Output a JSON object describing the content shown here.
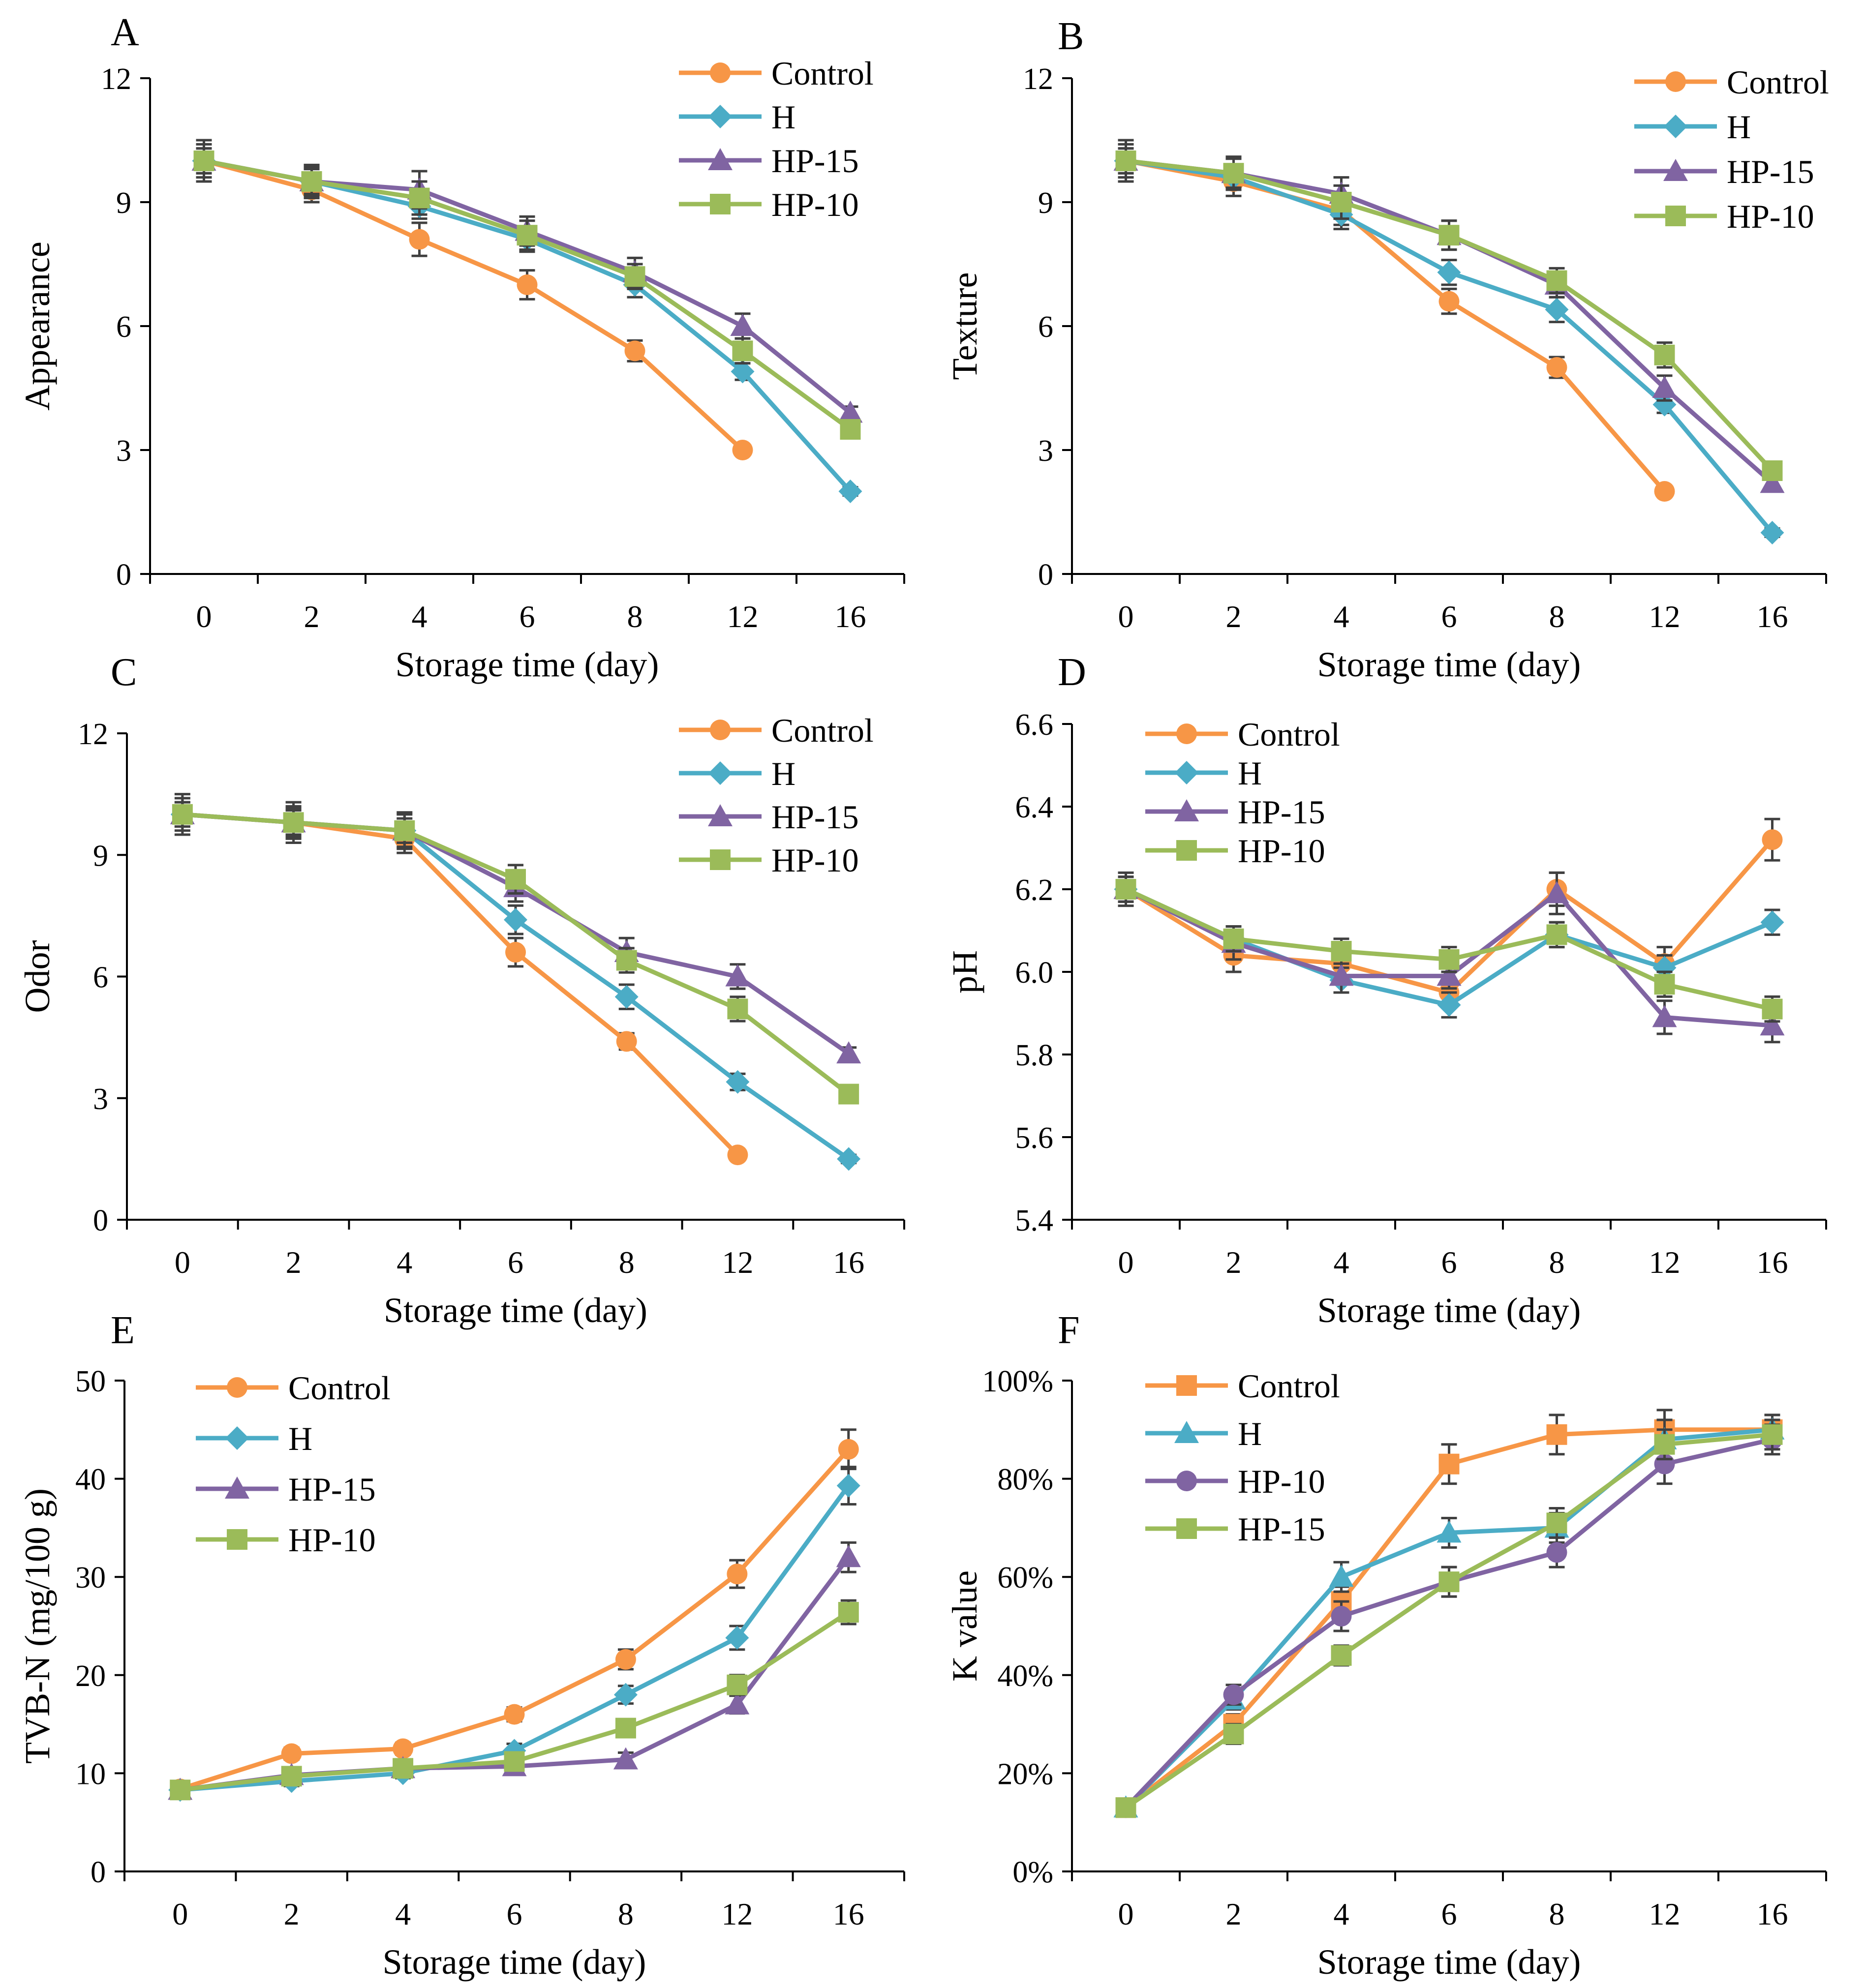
{
  "colors": {
    "control": "#F79646",
    "h": "#4BACC6",
    "hp15": "#8064A2",
    "hp10": "#9BBB59",
    "error_bar": "#404040"
  },
  "chart_data": [
    {
      "type": "line",
      "panel": "A",
      "xlabel": "Storage time (day)",
      "ylabel": "Appearance",
      "categories": [
        "0",
        "2",
        "4",
        "6",
        "8",
        "12",
        "16"
      ],
      "ylim": [
        0,
        12
      ],
      "yticks": [
        "0",
        "3",
        "6",
        "9",
        "12"
      ],
      "legend_position": "top-right",
      "series": [
        {
          "name": "Control",
          "marker": "circle",
          "color_key": "control",
          "values": [
            10.0,
            9.3,
            8.1,
            7.0,
            5.4,
            3.0,
            null
          ],
          "errors": [
            0.3,
            0.3,
            0.4,
            0.35,
            0.25,
            0.1,
            0
          ]
        },
        {
          "name": "H",
          "marker": "diamond",
          "color_key": "h",
          "values": [
            10.0,
            9.5,
            8.9,
            8.1,
            7.0,
            4.9,
            2.0
          ],
          "errors": [
            0.3,
            0.3,
            0.3,
            0.3,
            0.3,
            0.2,
            0.1
          ]
        },
        {
          "name": "HP-15",
          "marker": "triangle",
          "color_key": "hp15",
          "values": [
            10.0,
            9.5,
            9.3,
            8.3,
            7.3,
            6.0,
            3.9
          ],
          "errors": [
            0.5,
            0.4,
            0.45,
            0.35,
            0.35,
            0.3,
            0.15
          ]
        },
        {
          "name": "HP-10",
          "marker": "square",
          "color_key": "hp10",
          "values": [
            10.0,
            9.5,
            9.1,
            8.2,
            7.2,
            5.4,
            3.5
          ],
          "errors": [
            0.4,
            0.35,
            0.4,
            0.35,
            0.3,
            0.3,
            0.15
          ]
        }
      ]
    },
    {
      "type": "line",
      "panel": "B",
      "xlabel": "Storage time (day)",
      "ylabel": "Texture",
      "categories": [
        "0",
        "2",
        "4",
        "6",
        "8",
        "12",
        "16"
      ],
      "ylim": [
        0,
        12
      ],
      "yticks": [
        "0",
        "3",
        "6",
        "9",
        "12"
      ],
      "legend_position": "top-right",
      "series": [
        {
          "name": "Control",
          "marker": "circle",
          "color_key": "control",
          "values": [
            10.0,
            9.5,
            8.8,
            6.6,
            5.0,
            2.0,
            null
          ],
          "errors": [
            0.3,
            0.35,
            0.35,
            0.3,
            0.25,
            0.1,
            0
          ]
        },
        {
          "name": "H",
          "marker": "diamond",
          "color_key": "h",
          "values": [
            10.0,
            9.6,
            8.7,
            7.3,
            6.4,
            4.1,
            1.0
          ],
          "errors": [
            0.3,
            0.3,
            0.35,
            0.3,
            0.3,
            0.2,
            0.1
          ]
        },
        {
          "name": "HP-15",
          "marker": "triangle",
          "color_key": "hp15",
          "values": [
            10.0,
            9.7,
            9.2,
            8.2,
            7.0,
            4.5,
            2.2
          ],
          "errors": [
            0.5,
            0.4,
            0.4,
            0.35,
            0.3,
            0.3,
            0.15
          ]
        },
        {
          "name": "HP-10",
          "marker": "square",
          "color_key": "hp10",
          "values": [
            10.0,
            9.7,
            9.0,
            8.2,
            7.1,
            5.3,
            2.5
          ],
          "errors": [
            0.4,
            0.35,
            0.4,
            0.35,
            0.3,
            0.3,
            0.15
          ]
        }
      ]
    },
    {
      "type": "line",
      "panel": "C",
      "xlabel": "Storage time (day)",
      "ylabel": "Odor",
      "categories": [
        "0",
        "2",
        "4",
        "6",
        "8",
        "12",
        "16"
      ],
      "ylim": [
        0,
        12
      ],
      "yticks": [
        "0",
        "3",
        "6",
        "9",
        "12"
      ],
      "legend_position": "top-right",
      "series": [
        {
          "name": "Control",
          "marker": "circle",
          "color_key": "control",
          "values": [
            10.0,
            9.8,
            9.4,
            6.6,
            4.4,
            1.6,
            null
          ],
          "errors": [
            0.3,
            0.35,
            0.35,
            0.35,
            0.2,
            0.1,
            0
          ]
        },
        {
          "name": "H",
          "marker": "diamond",
          "color_key": "h",
          "values": [
            10.0,
            9.8,
            9.6,
            7.4,
            5.5,
            3.4,
            1.5
          ],
          "errors": [
            0.3,
            0.3,
            0.3,
            0.35,
            0.3,
            0.2,
            0.1
          ]
        },
        {
          "name": "HP-15",
          "marker": "triangle",
          "color_key": "hp15",
          "values": [
            10.0,
            9.8,
            9.6,
            8.2,
            6.6,
            6.0,
            4.1
          ],
          "errors": [
            0.5,
            0.5,
            0.45,
            0.35,
            0.35,
            0.3,
            0.15
          ]
        },
        {
          "name": "HP-10",
          "marker": "square",
          "color_key": "hp10",
          "values": [
            10.0,
            9.8,
            9.6,
            8.4,
            6.4,
            5.2,
            3.1
          ],
          "errors": [
            0.4,
            0.4,
            0.4,
            0.35,
            0.3,
            0.3,
            0.15
          ]
        }
      ]
    },
    {
      "type": "line",
      "panel": "D",
      "xlabel": "Storage time (day)",
      "ylabel": "pH",
      "categories": [
        "0",
        "2",
        "4",
        "6",
        "8",
        "12",
        "16"
      ],
      "ylim": [
        5.4,
        6.6
      ],
      "yticks": [
        "5.4",
        "5.6",
        "5.8",
        "6.0",
        "6.2",
        "6.4",
        "6.6"
      ],
      "legend_position": "top-left",
      "series": [
        {
          "name": "Control",
          "marker": "circle",
          "color_key": "control",
          "values": [
            6.2,
            6.04,
            6.02,
            5.95,
            6.2,
            6.02,
            6.32
          ],
          "errors": [
            0.03,
            0.04,
            0.03,
            0.03,
            0.04,
            0.04,
            0.05
          ]
        },
        {
          "name": "H",
          "marker": "diamond",
          "color_key": "h",
          "values": [
            6.2,
            6.08,
            5.98,
            5.92,
            6.09,
            6.01,
            6.12
          ],
          "errors": [
            0.03,
            0.03,
            0.03,
            0.03,
            0.03,
            0.03,
            0.03
          ]
        },
        {
          "name": "HP-15",
          "marker": "triangle",
          "color_key": "hp15",
          "values": [
            6.2,
            6.07,
            5.99,
            5.99,
            6.19,
            5.89,
            5.87
          ],
          "errors": [
            0.04,
            0.04,
            0.04,
            0.03,
            0.05,
            0.04,
            0.04
          ]
        },
        {
          "name": "HP-10",
          "marker": "square",
          "color_key": "hp10",
          "values": [
            6.2,
            6.08,
            6.05,
            6.03,
            6.09,
            5.97,
            5.91
          ],
          "errors": [
            0.03,
            0.03,
            0.03,
            0.03,
            0.03,
            0.03,
            0.03
          ]
        }
      ]
    },
    {
      "type": "line",
      "panel": "E",
      "xlabel": "Storage time (day)",
      "ylabel": "TVB-N (mg/100 g)",
      "categories": [
        "0",
        "2",
        "4",
        "6",
        "8",
        "12",
        "16"
      ],
      "ylim": [
        0,
        50
      ],
      "yticks": [
        "0",
        "10",
        "20",
        "30",
        "40",
        "50"
      ],
      "legend_position": "top-left",
      "series": [
        {
          "name": "Control",
          "marker": "circle",
          "color_key": "control",
          "values": [
            8.4,
            12.0,
            12.5,
            16.0,
            21.6,
            30.3,
            43.0
          ],
          "errors": [
            0.5,
            0.6,
            0.6,
            0.7,
            1.0,
            1.4,
            2.0
          ]
        },
        {
          "name": "H",
          "marker": "diamond",
          "color_key": "h",
          "values": [
            8.3,
            9.2,
            10.0,
            12.3,
            18.0,
            23.8,
            39.3
          ],
          "errors": [
            0.5,
            0.5,
            0.5,
            0.7,
            0.9,
            1.2,
            1.9
          ]
        },
        {
          "name": "HP-15",
          "marker": "triangle",
          "color_key": "hp15",
          "values": [
            8.3,
            9.8,
            10.5,
            10.7,
            11.4,
            17.0,
            32.0
          ],
          "errors": [
            0.5,
            0.5,
            0.5,
            0.7,
            0.7,
            0.9,
            1.5
          ]
        },
        {
          "name": "HP-10",
          "marker": "square",
          "color_key": "hp10",
          "values": [
            8.3,
            9.7,
            10.5,
            11.2,
            14.6,
            19.0,
            26.4
          ],
          "errors": [
            0.5,
            0.5,
            0.5,
            0.7,
            0.8,
            1.0,
            1.2
          ]
        }
      ]
    },
    {
      "type": "line",
      "panel": "F",
      "xlabel": "Storage time (day)",
      "ylabel": "K value",
      "categories": [
        "0",
        "2",
        "4",
        "6",
        "8",
        "12",
        "16"
      ],
      "ylim": [
        0,
        100
      ],
      "yticks": [
        "0%",
        "20%",
        "40%",
        "60%",
        "80%",
        "100%"
      ],
      "legend_position": "top-left",
      "series": [
        {
          "name": "Control",
          "marker": "square",
          "color_key": "control",
          "values": [
            13,
            30,
            55,
            83,
            89,
            90,
            90
          ],
          "errors": [
            0.5,
            2,
            3,
            4,
            4,
            4,
            3
          ]
        },
        {
          "name": "H",
          "marker": "triangle",
          "color_key": "h",
          "values": [
            13,
            35,
            60,
            69,
            70,
            88,
            90
          ],
          "errors": [
            0.5,
            2,
            3,
            3,
            3,
            4,
            3
          ]
        },
        {
          "name": "HP-10",
          "marker": "circle",
          "color_key": "hp15",
          "values": [
            13,
            36,
            52,
            59,
            65,
            83,
            88
          ],
          "errors": [
            0.5,
            2,
            3,
            3,
            3,
            4,
            3
          ]
        },
        {
          "name": "HP-15",
          "marker": "square",
          "color_key": "hp10",
          "values": [
            13,
            28,
            44,
            59,
            71,
            87,
            89
          ],
          "errors": [
            0.5,
            2,
            2,
            3,
            3,
            3,
            3
          ]
        }
      ]
    }
  ]
}
